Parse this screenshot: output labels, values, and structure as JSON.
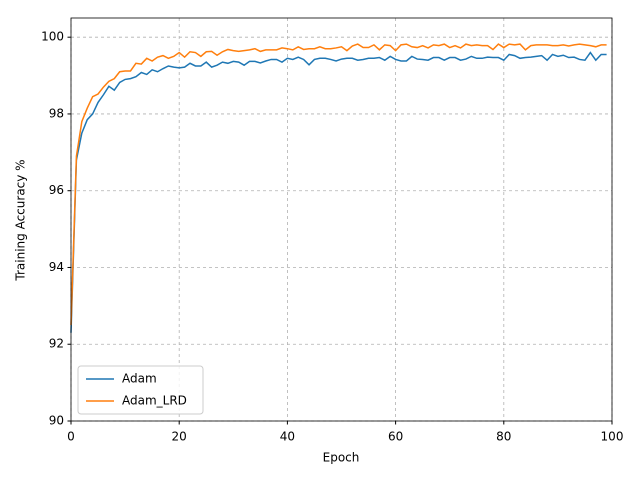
{
  "chart_data": {
    "type": "line",
    "xlabel": "Epoch",
    "ylabel": "Training Accuracy %",
    "x": [
      0,
      1,
      2,
      3,
      4,
      5,
      6,
      7,
      8,
      9,
      10,
      11,
      12,
      13,
      14,
      15,
      16,
      17,
      18,
      19,
      20,
      21,
      22,
      23,
      24,
      25,
      26,
      27,
      28,
      29,
      30,
      31,
      32,
      33,
      34,
      35,
      36,
      37,
      38,
      39,
      40,
      41,
      42,
      43,
      44,
      45,
      46,
      47,
      48,
      49,
      50,
      51,
      52,
      53,
      54,
      55,
      56,
      57,
      58,
      59,
      60,
      61,
      62,
      63,
      64,
      65,
      66,
      67,
      68,
      69,
      70,
      71,
      72,
      73,
      74,
      75,
      76,
      77,
      78,
      79,
      80,
      81,
      82,
      83,
      84,
      85,
      86,
      87,
      88,
      89,
      90,
      91,
      92,
      93,
      94,
      95,
      96,
      97,
      98,
      99
    ],
    "series": [
      {
        "name": "Adam",
        "color": "#1f77b4",
        "values": [
          92.3,
          96.8,
          97.5,
          97.85,
          98.0,
          98.3,
          98.5,
          98.72,
          98.62,
          98.82,
          98.9,
          98.92,
          98.97,
          99.08,
          99.03,
          99.15,
          99.1,
          99.18,
          99.25,
          99.22,
          99.2,
          99.22,
          99.32,
          99.25,
          99.25,
          99.35,
          99.22,
          99.27,
          99.35,
          99.32,
          99.37,
          99.35,
          99.27,
          99.37,
          99.37,
          99.33,
          99.38,
          99.42,
          99.42,
          99.35,
          99.45,
          99.42,
          99.48,
          99.42,
          99.28,
          99.42,
          99.45,
          99.45,
          99.42,
          99.38,
          99.43,
          99.45,
          99.45,
          99.4,
          99.42,
          99.45,
          99.45,
          99.47,
          99.4,
          99.5,
          99.42,
          99.38,
          99.38,
          99.5,
          99.43,
          99.42,
          99.4,
          99.47,
          99.47,
          99.4,
          99.47,
          99.47,
          99.4,
          99.43,
          99.5,
          99.45,
          99.45,
          99.48,
          99.47,
          99.47,
          99.4,
          99.55,
          99.52,
          99.45,
          99.47,
          99.48,
          99.5,
          99.52,
          99.4,
          99.55,
          99.5,
          99.53,
          99.47,
          99.48,
          99.42,
          99.4,
          99.6,
          99.4,
          99.55,
          99.55
        ]
      },
      {
        "name": "Adam_LRD",
        "color": "#ff7f0e",
        "values": [
          92.5,
          96.9,
          97.8,
          98.15,
          98.45,
          98.52,
          98.7,
          98.85,
          98.92,
          99.1,
          99.12,
          99.12,
          99.32,
          99.3,
          99.45,
          99.38,
          99.48,
          99.52,
          99.45,
          99.5,
          99.6,
          99.48,
          99.62,
          99.6,
          99.5,
          99.62,
          99.63,
          99.53,
          99.62,
          99.68,
          99.65,
          99.63,
          99.65,
          99.67,
          99.7,
          99.63,
          99.67,
          99.67,
          99.67,
          99.72,
          99.7,
          99.67,
          99.75,
          99.68,
          99.7,
          99.7,
          99.75,
          99.7,
          99.7,
          99.72,
          99.75,
          99.65,
          99.77,
          99.82,
          99.73,
          99.73,
          99.8,
          99.67,
          99.8,
          99.78,
          99.65,
          99.8,
          99.82,
          99.75,
          99.73,
          99.78,
          99.72,
          99.8,
          99.78,
          99.82,
          99.73,
          99.78,
          99.72,
          99.82,
          99.78,
          99.8,
          99.78,
          99.78,
          99.68,
          99.82,
          99.73,
          99.82,
          99.8,
          99.82,
          99.67,
          99.78,
          99.8,
          99.8,
          99.8,
          99.78,
          99.78,
          99.8,
          99.77,
          99.8,
          99.82,
          99.8,
          99.78,
          99.75,
          99.8,
          99.8
        ]
      }
    ],
    "xlim": [
      0,
      100
    ],
    "xticks": [
      0,
      20,
      40,
      60,
      80,
      100
    ],
    "ylim": [
      90,
      100.5
    ],
    "yticks": [
      90,
      92,
      94,
      96,
      98,
      100
    ],
    "grid": true,
    "legend": "lower left"
  }
}
